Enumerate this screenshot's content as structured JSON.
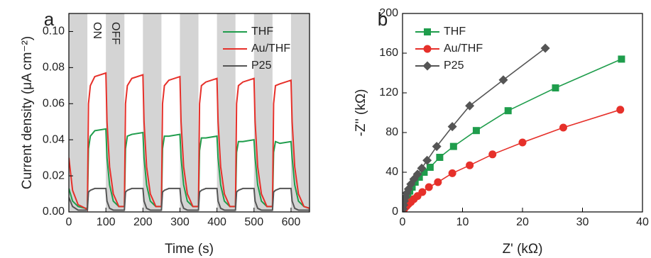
{
  "chart_data": [
    {
      "type": "line",
      "panel_label": "a",
      "xlabel": "Time (s)",
      "ylabel": "Current density (μA cm⁻²)",
      "annotations": [
        "ON",
        "OFF"
      ],
      "shaded_regions": [
        [
          0,
          50
        ],
        [
          100,
          150
        ],
        [
          200,
          250
        ],
        [
          300,
          350
        ],
        [
          400,
          450
        ],
        [
          500,
          550
        ],
        [
          600,
          650
        ]
      ],
      "x": [
        0,
        10,
        25,
        45,
        50,
        53,
        58,
        70,
        100,
        103,
        110,
        120,
        135,
        150,
        153,
        158,
        170,
        200,
        203,
        210,
        220,
        235,
        250,
        253,
        258,
        270,
        300,
        303,
        310,
        320,
        335,
        350,
        353,
        358,
        370,
        400,
        403,
        410,
        420,
        435,
        450,
        453,
        458,
        470,
        500,
        503,
        510,
        520,
        535,
        550,
        553,
        558,
        570,
        600,
        603,
        610,
        620,
        635,
        650
      ],
      "series": [
        {
          "name": "THF",
          "color": "#1f9d4c",
          "values": [
            0.013,
            0.006,
            0.003,
            0.002,
            0.002,
            0.035,
            0.042,
            0.045,
            0.046,
            0.03,
            0.015,
            0.006,
            0.003,
            0.003,
            0.035,
            0.042,
            0.043,
            0.044,
            0.03,
            0.015,
            0.006,
            0.003,
            0.003,
            0.035,
            0.042,
            0.042,
            0.043,
            0.03,
            0.015,
            0.006,
            0.003,
            0.003,
            0.034,
            0.041,
            0.041,
            0.042,
            0.03,
            0.015,
            0.006,
            0.003,
            0.003,
            0.033,
            0.039,
            0.039,
            0.04,
            0.03,
            0.015,
            0.006,
            0.003,
            0.003,
            0.033,
            0.039,
            0.038,
            0.039,
            0.03,
            0.015,
            0.006,
            0.003,
            0.002
          ]
        },
        {
          "name": "Au/THF",
          "color": "#e6302a",
          "values": [
            0.03,
            0.012,
            0.004,
            0.002,
            0.001,
            0.06,
            0.07,
            0.075,
            0.077,
            0.05,
            0.025,
            0.01,
            0.003,
            0.003,
            0.06,
            0.07,
            0.074,
            0.076,
            0.05,
            0.025,
            0.01,
            0.003,
            0.003,
            0.06,
            0.07,
            0.073,
            0.075,
            0.05,
            0.025,
            0.01,
            0.003,
            0.003,
            0.06,
            0.07,
            0.072,
            0.074,
            0.05,
            0.025,
            0.01,
            0.003,
            0.003,
            0.06,
            0.07,
            0.072,
            0.074,
            0.05,
            0.025,
            0.01,
            0.003,
            0.003,
            0.06,
            0.07,
            0.071,
            0.073,
            0.05,
            0.025,
            0.01,
            0.003,
            0.002
          ]
        },
        {
          "name": "P25",
          "color": "#555555",
          "values": [
            0.008,
            0.003,
            0.001,
            0.001,
            0.001,
            0.011,
            0.012,
            0.013,
            0.013,
            0.006,
            0.002,
            0.001,
            0.001,
            0.001,
            0.011,
            0.012,
            0.013,
            0.013,
            0.006,
            0.002,
            0.001,
            0.001,
            0.001,
            0.011,
            0.012,
            0.013,
            0.013,
            0.006,
            0.002,
            0.001,
            0.001,
            0.001,
            0.011,
            0.012,
            0.013,
            0.013,
            0.006,
            0.002,
            0.001,
            0.001,
            0.001,
            0.011,
            0.012,
            0.013,
            0.013,
            0.006,
            0.002,
            0.001,
            0.001,
            0.001,
            0.011,
            0.012,
            0.013,
            0.013,
            0.006,
            0.002,
            0.001,
            0.001,
            0.001
          ]
        }
      ],
      "xlim": [
        0,
        650
      ],
      "xticks": [
        0,
        100,
        200,
        300,
        400,
        500,
        600
      ],
      "ylim": [
        0,
        0.11
      ],
      "yticks": [
        {
          "value": 0,
          "label": "0.00"
        },
        0.02,
        0.04,
        0.06,
        0.08,
        {
          "value": 0.1,
          "label": "0.10"
        }
      ],
      "legend": "upper right",
      "shade_color": "#d4d4d4"
    },
    {
      "type": "line",
      "panel_label": "b",
      "xlabel": "Z' (kΩ)",
      "ylabel": "-Z'' (kΩ)",
      "series": [
        {
          "name": "THF",
          "color": "#1f9d4c",
          "marker": "square",
          "x": [
            0.1,
            0.2,
            0.4,
            0.6,
            0.9,
            1.2,
            1.6,
            2.1,
            2.8,
            3.6,
            4.6,
            6.2,
            8.5,
            12.3,
            17.6,
            25.5,
            36.5
          ],
          "values": [
            2,
            5,
            9,
            13,
            17,
            21,
            25,
            30,
            35,
            40,
            45,
            55,
            66,
            82,
            102,
            125,
            154
          ]
        },
        {
          "name": "Au/THF",
          "color": "#e6302a",
          "marker": "circle",
          "x": [
            0.1,
            0.2,
            0.4,
            0.7,
            1,
            1.4,
            1.9,
            2.5,
            3.3,
            4.4,
            5.9,
            8.3,
            11.2,
            15,
            20,
            26.8,
            36.3
          ],
          "values": [
            1,
            2,
            4,
            6,
            8,
            10,
            13,
            16,
            20,
            25,
            30,
            39,
            47,
            58,
            70,
            85,
            103
          ]
        },
        {
          "name": "P25",
          "color": "#555555",
          "marker": "diamond",
          "x": [
            0.1,
            0.2,
            0.3,
            0.5,
            0.7,
            1,
            1.4,
            1.9,
            2.5,
            3.2,
            4.1,
            5.7,
            8.3,
            11.2,
            16.8,
            23.8
          ],
          "values": [
            3,
            7,
            11,
            15,
            19,
            23,
            28,
            33,
            38,
            44,
            52,
            66,
            86,
            107,
            133,
            165
          ]
        }
      ],
      "xlim": [
        0,
        40
      ],
      "xticks": [
        0,
        10,
        20,
        30,
        40
      ],
      "ylim": [
        0,
        200
      ],
      "yticks": [
        0,
        40,
        80,
        120,
        160,
        200
      ],
      "legend": "upper left"
    }
  ]
}
